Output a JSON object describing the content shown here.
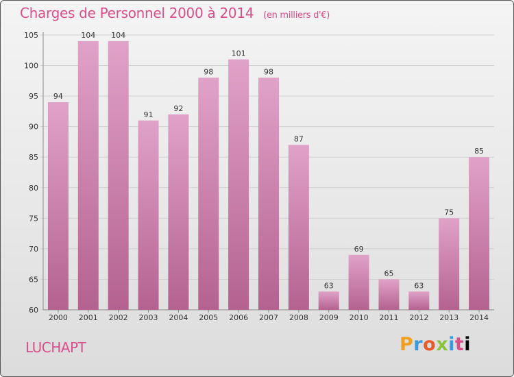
{
  "header": {
    "title": "Charges de Personnel 2000 à 2014",
    "subtitle": "(en milliers d'€)"
  },
  "footer": {
    "commune": "LUCHAPT",
    "brand_letters": [
      "P",
      "r",
      "o",
      "x",
      "i",
      "t",
      "i"
    ]
  },
  "colors": {
    "bar_top": "#e0a2c8",
    "bar_bottom": "#b4628f",
    "title": "#d94f8a"
  },
  "chart_data": {
    "type": "bar",
    "title": "Charges de Personnel 2000 à 2014",
    "subtitle": "(en milliers d'€)",
    "categories": [
      "2000",
      "2001",
      "2002",
      "2003",
      "2004",
      "2005",
      "2006",
      "2007",
      "2008",
      "2009",
      "2010",
      "2011",
      "2012",
      "2013",
      "2014"
    ],
    "values": [
      94,
      104,
      104,
      91,
      92,
      98,
      101,
      98,
      87,
      63,
      69,
      65,
      63,
      75,
      85
    ],
    "ylim": [
      60,
      105
    ],
    "yticks": [
      60,
      65,
      70,
      75,
      80,
      85,
      90,
      95,
      100,
      105
    ],
    "grid": true,
    "legend": "none"
  }
}
